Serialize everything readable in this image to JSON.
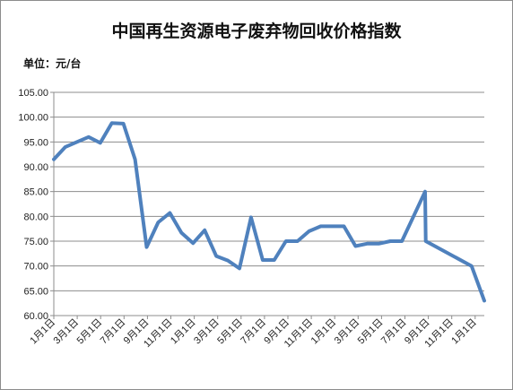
{
  "chart_data": {
    "type": "line",
    "title": "中国再生资源电子废弃物回收价格指数",
    "unit_label": "单位：元/台",
    "xlabel": "",
    "ylabel": "",
    "ylim": [
      60,
      105
    ],
    "yticks": [
      "60.00",
      "65.00",
      "70.00",
      "75.00",
      "80.00",
      "85.00",
      "90.00",
      "95.00",
      "100.00",
      "105.00"
    ],
    "grid": true,
    "legend": "none",
    "line_color": "#4f81bd",
    "x_tick_labels": [
      "1月1日",
      "3月1日",
      "5月1日",
      "7月1日",
      "9月1日",
      "11月1日",
      "1月1日",
      "3月1日",
      "5月1日",
      "7月1日",
      "9月1日",
      "11月1日",
      "1月1日",
      "3月1日",
      "5月1日",
      "7月1日",
      "9月1日",
      "11月1日",
      "1月1日"
    ],
    "x": [
      0,
      1,
      2,
      3,
      4,
      5,
      6,
      7,
      8,
      9,
      10,
      11,
      12,
      13,
      14,
      15,
      16,
      17,
      18,
      19,
      20,
      21,
      22,
      23,
      24,
      25,
      26,
      27,
      28,
      29,
      30,
      31,
      32,
      32.05,
      36,
      37.1
    ],
    "values": [
      91.5,
      94.0,
      95.0,
      96.0,
      94.8,
      98.8,
      98.7,
      91.5,
      73.8,
      78.8,
      80.7,
      76.7,
      74.6,
      77.2,
      72.0,
      71.1,
      69.5,
      79.8,
      71.2,
      71.2,
      75.0,
      75.0,
      77.0,
      78.0,
      78.0,
      78.0,
      74.0,
      74.5,
      74.5,
      75.0,
      75.0,
      80.0,
      85.0,
      75.0,
      70.0,
      63.0
    ]
  }
}
